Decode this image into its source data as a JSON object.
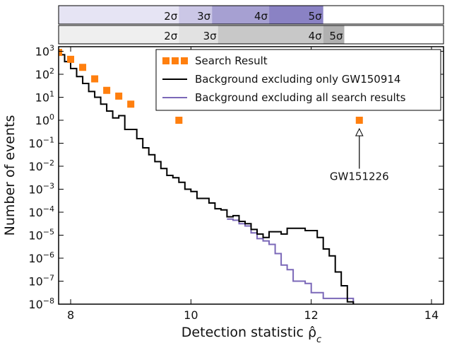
{
  "chart_data": {
    "type": "line",
    "xlabel": "Detection statistic ρ̂",
    "xlabel_sub": "c",
    "ylabel": "Number of events",
    "xlim": [
      7.8,
      14.2
    ],
    "ylim_log10": [
      -8,
      3.2
    ],
    "y_scale": "log",
    "x_ticks": [
      8,
      10,
      12,
      14
    ],
    "y_ticks": [
      {
        "exp": -8,
        "base": "10",
        "sup": "−8"
      },
      {
        "exp": -7,
        "base": "10",
        "sup": "−7"
      },
      {
        "exp": -6,
        "base": "10",
        "sup": "−6"
      },
      {
        "exp": -5,
        "base": "10",
        "sup": "−5"
      },
      {
        "exp": -4,
        "base": "10",
        "sup": "−4"
      },
      {
        "exp": -3,
        "base": "10",
        "sup": "−3"
      },
      {
        "exp": -2,
        "base": "10",
        "sup": "−2"
      },
      {
        "exp": -1,
        "base": "10",
        "sup": "−1"
      },
      {
        "exp": 0,
        "base": "10",
        "sup": "0"
      },
      {
        "exp": 1,
        "base": "10",
        "sup": "1"
      },
      {
        "exp": 2,
        "base": "10",
        "sup": "2"
      },
      {
        "exp": 3,
        "base": "10",
        "sup": "3"
      }
    ],
    "legend_position": "top-right",
    "legend": [
      {
        "label": "Search Result",
        "kind": "squares",
        "color": "#ff7f0e"
      },
      {
        "label": "Background excluding only GW150914",
        "kind": "line",
        "color": "#000000"
      },
      {
        "label": "Background excluding all search results",
        "kind": "line",
        "color": "#7b68b8"
      }
    ],
    "series": [
      {
        "name": "Search Result",
        "kind": "scatter",
        "color": "#ff7f0e",
        "x": [
          7.8,
          8.0,
          8.2,
          8.4,
          8.6,
          8.8,
          9.0,
          9.8,
          12.8
        ],
        "log10_y": [
          2.95,
          2.65,
          2.3,
          1.8,
          1.3,
          1.05,
          0.7,
          0.0,
          0.0
        ]
      },
      {
        "name": "Background excluding only GW150914",
        "kind": "step",
        "color": "#000000",
        "x_edges": [
          7.8,
          7.9,
          8.0,
          8.1,
          8.2,
          8.3,
          8.4,
          8.5,
          8.6,
          8.7,
          8.8,
          8.9,
          9.0,
          9.1,
          9.2,
          9.3,
          9.4,
          9.5,
          9.6,
          9.7,
          9.8,
          9.9,
          10.0,
          10.1,
          10.2,
          10.3,
          10.4,
          10.5,
          10.6,
          10.7,
          10.8,
          10.9,
          11.0,
          11.1,
          11.2,
          11.3,
          11.4,
          11.5,
          11.6,
          11.7,
          11.8,
          11.9,
          12.0,
          12.1,
          12.2,
          12.3,
          12.4,
          12.5,
          12.6,
          12.7
        ],
        "log10_y": [
          2.85,
          2.55,
          2.25,
          1.9,
          1.6,
          1.25,
          1.0,
          0.7,
          0.4,
          0.1,
          0.2,
          -0.4,
          -0.4,
          -0.8,
          -1.2,
          -1.5,
          -1.8,
          -2.1,
          -2.4,
          -2.5,
          -2.7,
          -3.0,
          -3.1,
          -3.4,
          -3.4,
          -3.6,
          -3.85,
          -3.9,
          -4.2,
          -4.15,
          -4.4,
          -4.5,
          -4.75,
          -4.95,
          -5.1,
          -4.85,
          -4.85,
          -4.95,
          -4.7,
          -4.7,
          -4.7,
          -4.8,
          -4.8,
          -5.1,
          -5.6,
          -5.9,
          -6.6,
          -7.2,
          -7.9
        ]
      },
      {
        "name": "Background excluding all search results",
        "kind": "step",
        "color": "#7b68b8",
        "x_edges": [
          10.6,
          10.7,
          10.8,
          10.9,
          11.0,
          11.1,
          11.2,
          11.3,
          11.4,
          11.5,
          11.6,
          11.7,
          11.8,
          11.9,
          12.0,
          12.1,
          12.2,
          12.3,
          12.4,
          12.5,
          12.6,
          12.7
        ],
        "log10_y": [
          -4.3,
          -4.35,
          -4.5,
          -4.6,
          -4.9,
          -5.15,
          -5.25,
          -5.4,
          -5.8,
          -6.3,
          -6.5,
          -7.0,
          -7.0,
          -7.1,
          -7.5,
          -7.5,
          -7.75,
          -7.75,
          -7.75,
          -7.75,
          -7.75
        ]
      }
    ],
    "annotations": [
      {
        "text": "GW151226",
        "x": 12.8,
        "log10_y": 0.0
      }
    ],
    "sigma_bands": [
      {
        "bounds": [
          9.8,
          10.35,
          11.3,
          12.2
        ],
        "labels": [
          {
            "text": "2σ",
            "at": 9.8
          },
          {
            "text": "3σ",
            "at": 10.35
          },
          {
            "text": "4σ",
            "at": 11.3
          },
          {
            "text": "5σ",
            "at": 12.2
          }
        ],
        "colors": [
          "#e6e4f4",
          "#cbc7e6",
          "#a6a0d2",
          "#8a82c4"
        ]
      },
      {
        "bounds": [
          9.8,
          10.45,
          12.2,
          12.55
        ],
        "labels": [
          {
            "text": "2σ",
            "at": 9.8
          },
          {
            "text": "3σ",
            "at": 10.45
          },
          {
            "text": "4σ",
            "at": 12.2
          },
          {
            "text": "5σ",
            "at": 12.55
          }
        ],
        "colors": [
          "#efefef",
          "#e2e2e2",
          "#c8c8c8",
          "#b0b0b0"
        ]
      }
    ]
  }
}
